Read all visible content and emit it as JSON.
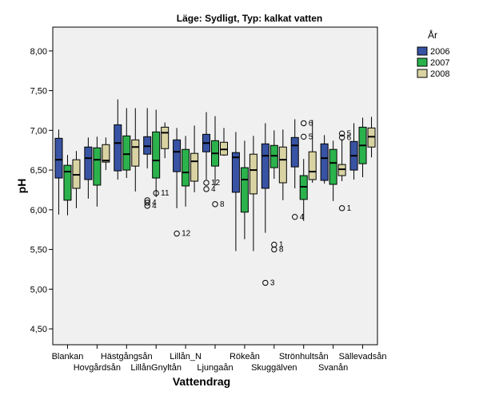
{
  "chart_data": {
    "type": "boxplot",
    "title": "Läge: Sydligt, Typ: kalkat vatten",
    "xlabel": "Vattendrag",
    "ylabel": "pH",
    "ylim": [
      4.3,
      8.3
    ],
    "yticks": [
      "4,50",
      "5,00",
      "5,50",
      "6,00",
      "6,50",
      "7,00",
      "7,50",
      "8,00"
    ],
    "ytick_values": [
      4.5,
      5.0,
      5.5,
      6.0,
      6.5,
      7.0,
      7.5,
      8.0
    ],
    "grid": false,
    "legend_position": "top-right",
    "legend_title": "År",
    "series": [
      {
        "name": "2006",
        "color": "#3853a4"
      },
      {
        "name": "2007",
        "color": "#2bb24c"
      },
      {
        "name": "2008",
        "color": "#d9d3a3"
      }
    ],
    "categories": [
      "Blankan",
      "Hovgårdsån",
      "Hästgångsån",
      "LillånGnyltån",
      "Lillån_N",
      "Ljungaån",
      "Rökeån",
      "Skuggälven",
      "Strönhultsån",
      "Svanån",
      "Sällevadsån"
    ],
    "boxes": [
      [
        {
          "min": 5.94,
          "q1": 6.4,
          "median": 6.63,
          "q3": 6.9,
          "max": 7.01
        },
        {
          "min": 5.93,
          "q1": 6.12,
          "median": 6.48,
          "q3": 6.56,
          "max": 6.69
        },
        {
          "min": 6.02,
          "q1": 6.27,
          "median": 6.44,
          "q3": 6.63,
          "max": 6.74
        }
      ],
      [
        {
          "min": 6.14,
          "q1": 6.38,
          "median": 6.65,
          "q3": 6.79,
          "max": 6.91
        },
        {
          "min": 6.04,
          "q1": 6.31,
          "median": 6.63,
          "q3": 6.78,
          "max": 6.92
        },
        {
          "min": 6.5,
          "q1": 6.6,
          "median": 6.62,
          "q3": 6.82,
          "max": 6.91
        }
      ],
      [
        {
          "min": 6.38,
          "q1": 6.49,
          "median": 6.84,
          "q3": 7.07,
          "max": 7.39
        },
        {
          "min": 6.4,
          "q1": 6.5,
          "median": 6.7,
          "q3": 6.93,
          "max": 7.28
        },
        {
          "min": 6.23,
          "q1": 6.55,
          "median": 6.79,
          "q3": 6.88,
          "max": 7.28
        }
      ],
      [
        {
          "min": 6.52,
          "q1": 6.7,
          "median": 6.8,
          "q3": 6.92,
          "max": 7.28
        },
        {
          "min": 6.16,
          "q1": 6.4,
          "median": 6.62,
          "q3": 6.98,
          "max": 7.26
        },
        {
          "min": 6.65,
          "q1": 6.77,
          "median": 6.97,
          "q3": 7.04,
          "max": 7.1
        }
      ],
      [
        {
          "min": 6.02,
          "q1": 6.48,
          "median": 6.73,
          "q3": 6.88,
          "max": 7.03
        },
        {
          "min": 6.04,
          "q1": 6.3,
          "median": 6.47,
          "q3": 6.76,
          "max": 6.93
        },
        {
          "min": 6.22,
          "q1": 6.36,
          "median": 6.61,
          "q3": 6.71,
          "max": 7.06
        }
      ],
      [
        {
          "min": 6.38,
          "q1": 6.73,
          "median": 6.84,
          "q3": 6.95,
          "max": 7.23
        },
        {
          "min": 6.3,
          "q1": 6.55,
          "median": 6.71,
          "q3": 6.87,
          "max": 7.18
        },
        {
          "min": 6.68,
          "q1": 6.69,
          "median": 6.76,
          "q3": 6.85,
          "max": 7.03
        }
      ],
      [
        {
          "min": 5.48,
          "q1": 6.22,
          "median": 6.66,
          "q3": 6.72,
          "max": 6.98
        },
        {
          "min": 5.63,
          "q1": 5.97,
          "median": 6.38,
          "q3": 6.53,
          "max": 6.87
        },
        {
          "min": 5.48,
          "q1": 6.2,
          "median": 6.5,
          "q3": 6.7,
          "max": 6.93
        }
      ],
      [
        {
          "min": 5.71,
          "q1": 6.27,
          "median": 6.68,
          "q3": 6.83,
          "max": 7.09
        },
        {
          "min": 6.39,
          "q1": 6.53,
          "median": 6.68,
          "q3": 6.81,
          "max": 7.0
        },
        {
          "min": 6.12,
          "q1": 6.34,
          "median": 6.63,
          "q3": 6.79,
          "max": 7.01
        }
      ],
      [
        {
          "min": 6.27,
          "q1": 6.54,
          "median": 6.81,
          "q3": 6.91,
          "max": 7.14
        },
        {
          "min": 5.86,
          "q1": 6.13,
          "median": 6.29,
          "q3": 6.43,
          "max": 6.64
        },
        {
          "min": 6.34,
          "q1": 6.38,
          "median": 6.48,
          "q3": 6.73,
          "max": 7.13
        }
      ],
      [
        {
          "min": 6.33,
          "q1": 6.37,
          "median": 6.65,
          "q3": 6.83,
          "max": 6.94
        },
        {
          "min": 6.11,
          "q1": 6.32,
          "median": 6.59,
          "q3": 6.76,
          "max": 6.87
        },
        {
          "min": 6.36,
          "q1": 6.43,
          "median": 6.51,
          "q3": 6.57,
          "max": 6.89
        }
      ],
      [
        {
          "min": 6.38,
          "q1": 6.5,
          "median": 6.68,
          "q3": 6.86,
          "max": 7.09
        },
        {
          "min": 6.41,
          "q1": 6.58,
          "median": 6.81,
          "q3": 7.04,
          "max": 7.16
        },
        {
          "min": 6.66,
          "q1": 6.79,
          "median": 6.92,
          "q3": 7.03,
          "max": 7.17
        }
      ]
    ],
    "outliers": [
      {
        "category": 3,
        "series": 0,
        "value": 6.12,
        "label": ""
      },
      {
        "category": 3,
        "series": 0,
        "value": 6.09,
        "label": "4"
      },
      {
        "category": 3,
        "series": 0,
        "value": 6.05,
        "label": "4"
      },
      {
        "category": 3,
        "series": 1,
        "value": 6.21,
        "label": "11"
      },
      {
        "category": 4,
        "series": 0,
        "value": 5.7,
        "label": "12"
      },
      {
        "category": 5,
        "series": 0,
        "value": 6.34,
        "label": "12"
      },
      {
        "category": 5,
        "series": 0,
        "value": 6.26,
        "label": "4"
      },
      {
        "category": 5,
        "series": 1,
        "value": 6.07,
        "label": "8"
      },
      {
        "category": 7,
        "series": 0,
        "value": 5.08,
        "label": "3"
      },
      {
        "category": 7,
        "series": 1,
        "value": 5.56,
        "label": "1"
      },
      {
        "category": 7,
        "series": 1,
        "value": 5.5,
        "label": "8"
      },
      {
        "category": 8,
        "series": 0,
        "value": 5.91,
        "label": "4"
      },
      {
        "category": 8,
        "series": 1,
        "value": 7.09,
        "label": "6"
      },
      {
        "category": 8,
        "series": 1,
        "value": 6.92,
        "label": "5"
      },
      {
        "category": 9,
        "series": 2,
        "value": 6.96,
        "label": "5"
      },
      {
        "category": 9,
        "series": 2,
        "value": 6.91,
        "label": "6"
      },
      {
        "category": 9,
        "series": 2,
        "value": 6.02,
        "label": "1"
      }
    ]
  }
}
